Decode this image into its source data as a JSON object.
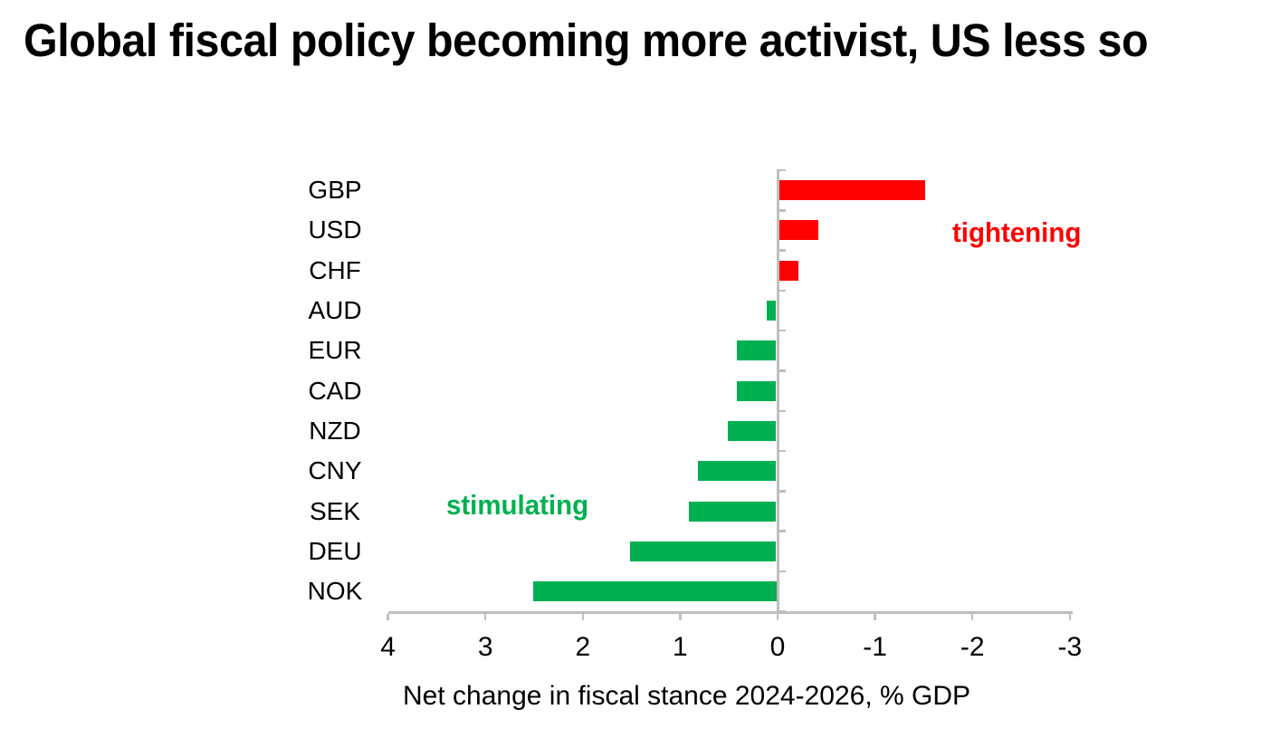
{
  "title": "Global fiscal policy becoming more activist, US less so",
  "chart_data": {
    "type": "bar",
    "orientation": "horizontal",
    "title": "Global fiscal policy becoming more activist, US less so",
    "categories": [
      "GBP",
      "USD",
      "CHF",
      "AUD",
      "EUR",
      "CAD",
      "NZD",
      "CNY",
      "SEK",
      "DEU",
      "NOK"
    ],
    "values": [
      -1.5,
      -0.4,
      -0.2,
      0.1,
      0.4,
      0.4,
      0.5,
      0.8,
      0.9,
      1.5,
      2.5
    ],
    "x_ticks": [
      4,
      3,
      2,
      1,
      0,
      -1,
      -2,
      -3
    ],
    "xlim": [
      4,
      -3
    ],
    "x_axis_reversed": true,
    "xlabel": "Net change in fiscal stance 2024-2026, % GDP",
    "grid": false,
    "legend": "none",
    "positive_color": "#00B050",
    "negative_color": "#FF0000",
    "axis_color": "#BFBFBF",
    "annotations": [
      {
        "text": "tightening",
        "color": "#FF0000",
        "side": "negative"
      },
      {
        "text": "stimulating",
        "color": "#00B050",
        "side": "positive"
      }
    ]
  }
}
